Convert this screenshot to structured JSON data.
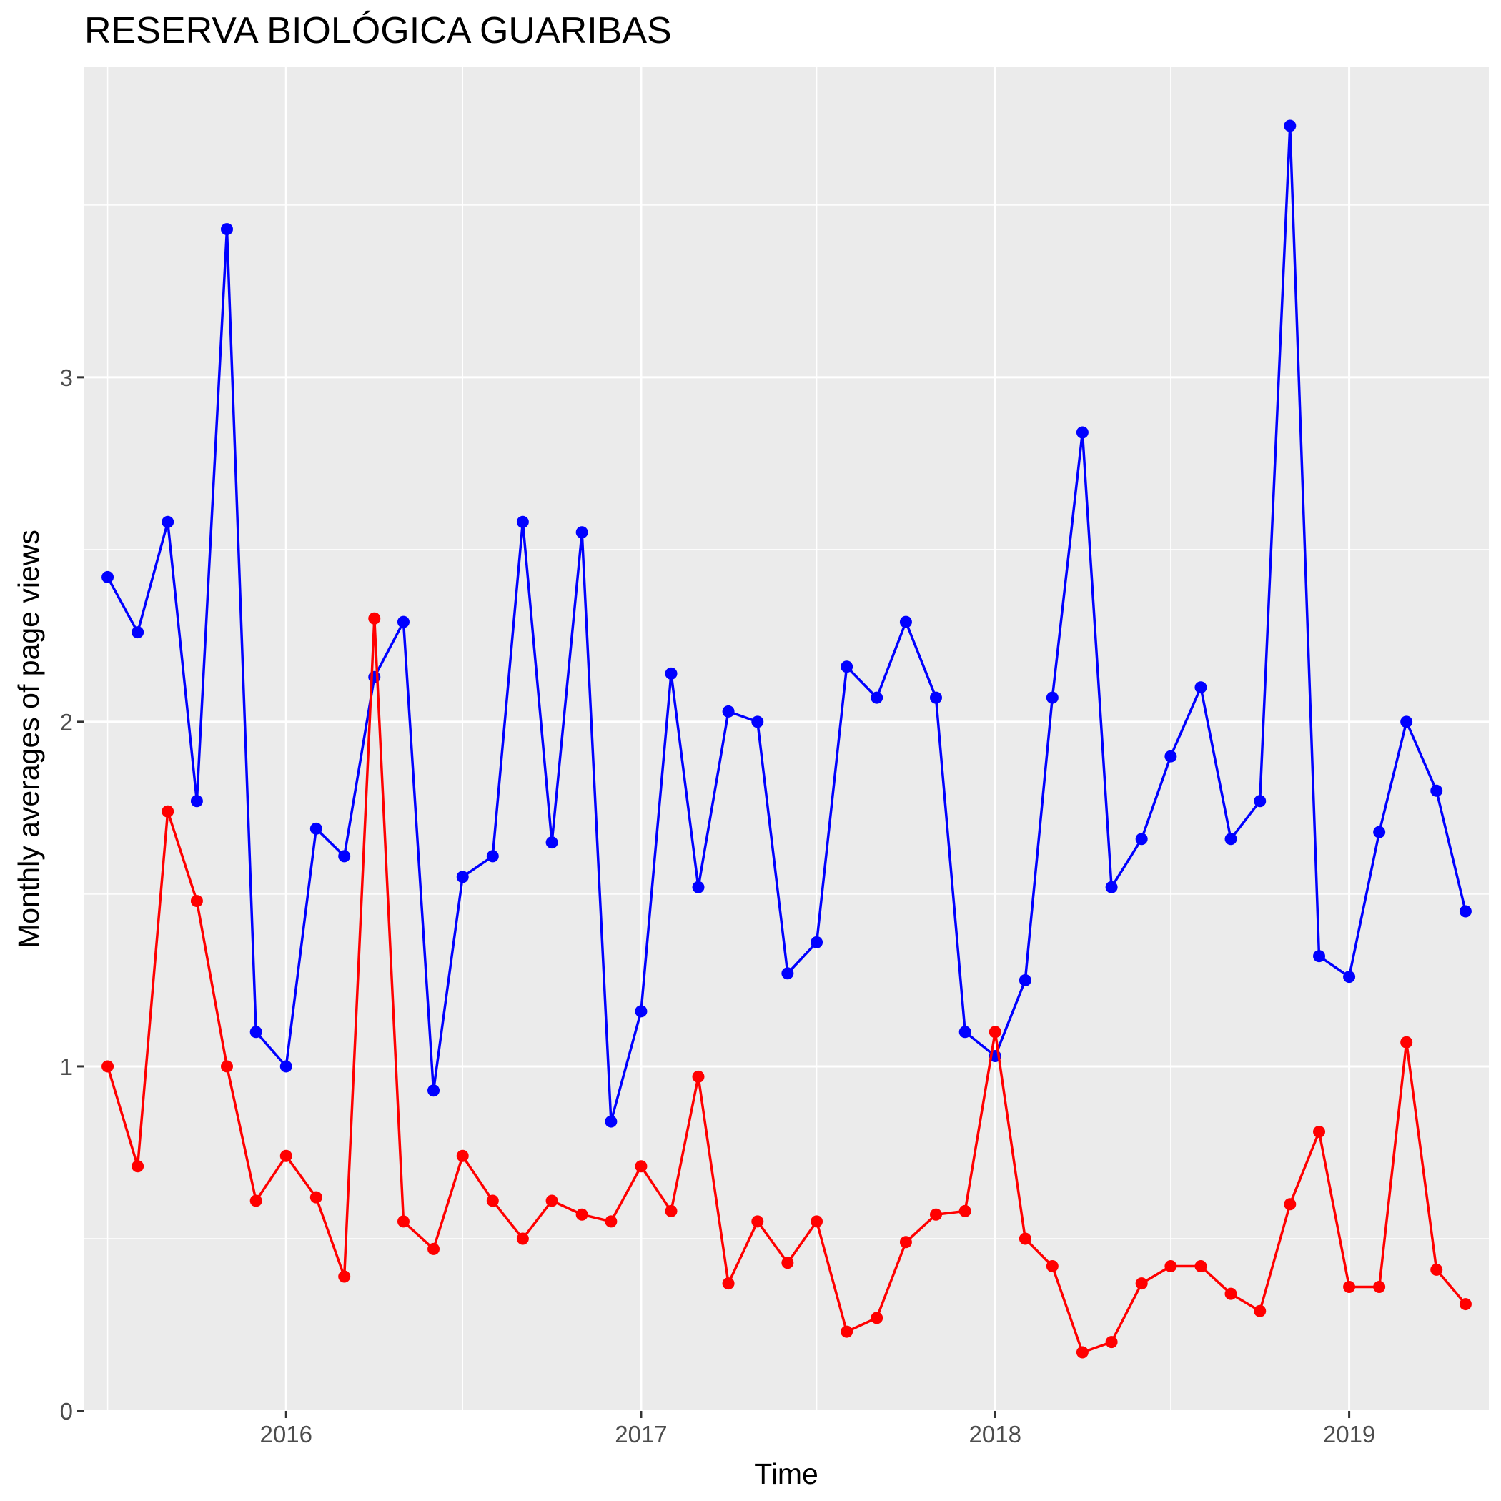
{
  "chart_data": {
    "type": "line",
    "title": "RESERVA BIOLÓGICA GUARIBAS",
    "xlabel": "Time",
    "ylabel": "Monthly averages of page views",
    "x_tick_labels": [
      "2016",
      "2017",
      "2018",
      "2019"
    ],
    "y_tick_labels": [
      "0",
      "1",
      "2",
      "3"
    ],
    "ylim": [
      0,
      3.9
    ],
    "xlim": [
      "2015-06-07",
      "2019-05-25"
    ],
    "grid": true,
    "legend": "none",
    "x": [
      "2015-07-01",
      "2015-08-01",
      "2015-09-01",
      "2015-10-01",
      "2015-11-01",
      "2015-12-01",
      "2016-01-01",
      "2016-02-01",
      "2016-03-01",
      "2016-04-01",
      "2016-05-01",
      "2016-06-01",
      "2016-07-01",
      "2016-08-01",
      "2016-09-01",
      "2016-10-01",
      "2016-11-01",
      "2016-12-01",
      "2017-01-01",
      "2017-02-01",
      "2017-03-01",
      "2017-04-01",
      "2017-05-01",
      "2017-06-01",
      "2017-07-01",
      "2017-08-01",
      "2017-09-01",
      "2017-10-01",
      "2017-11-01",
      "2017-12-01",
      "2018-01-01",
      "2018-02-01",
      "2018-03-01",
      "2018-04-01",
      "2018-05-01",
      "2018-06-01",
      "2018-07-01",
      "2018-08-01",
      "2018-09-01",
      "2018-10-01",
      "2018-11-01",
      "2018-12-01",
      "2019-01-01",
      "2019-02-01",
      "2019-03-01",
      "2019-04-01",
      "2019-05-01"
    ],
    "series": [
      {
        "color": "#0000ff",
        "values": [
          2.42,
          2.26,
          2.58,
          1.77,
          3.43,
          1.1,
          1.0,
          1.69,
          1.61,
          2.13,
          2.29,
          0.93,
          1.55,
          1.61,
          2.58,
          1.65,
          2.55,
          0.84,
          1.16,
          2.14,
          1.52,
          2.03,
          2.0,
          1.27,
          1.36,
          2.16,
          2.07,
          2.29,
          2.07,
          1.1,
          1.03,
          1.25,
          2.07,
          2.84,
          1.52,
          1.66,
          1.9,
          2.1,
          1.66,
          1.77,
          3.73,
          1.32,
          1.26,
          1.68,
          2.0,
          1.8,
          1.45
        ]
      },
      {
        "color": "#ff0000",
        "values": [
          1.0,
          0.71,
          1.74,
          1.48,
          1.0,
          0.61,
          0.74,
          0.62,
          0.39,
          2.3,
          0.55,
          0.47,
          0.74,
          0.61,
          0.5,
          0.61,
          0.57,
          0.55,
          0.71,
          0.58,
          0.97,
          0.37,
          0.55,
          0.43,
          0.55,
          0.23,
          0.27,
          0.49,
          0.57,
          0.58,
          1.1,
          0.5,
          0.42,
          0.17,
          0.2,
          0.37,
          0.42,
          0.42,
          0.34,
          0.29,
          0.6,
          0.81,
          0.36,
          0.36,
          1.07,
          0.41,
          0.31
        ]
      }
    ]
  }
}
